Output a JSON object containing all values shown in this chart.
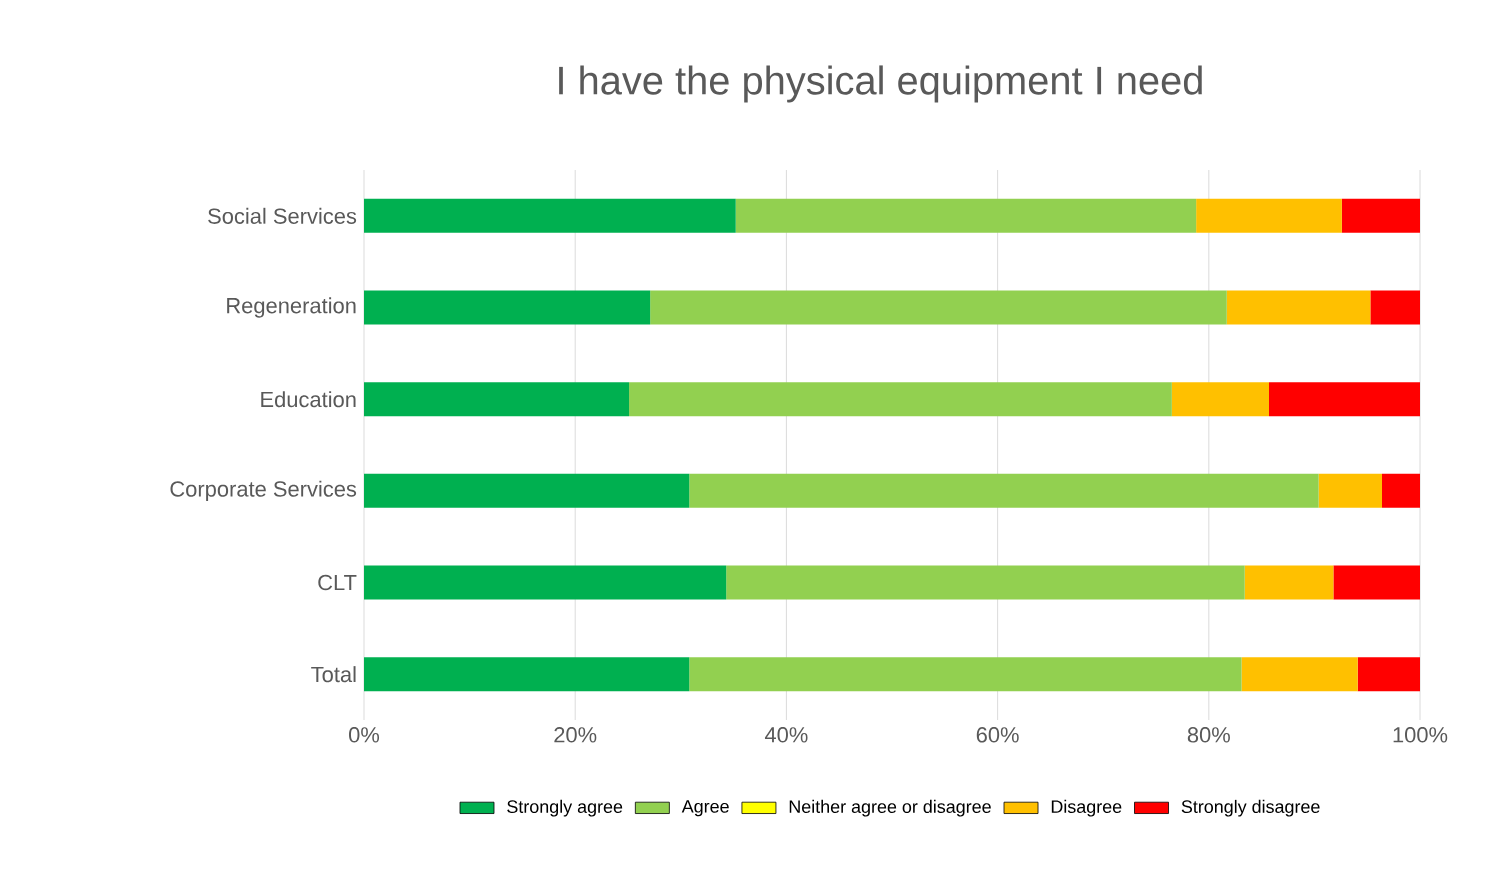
{
  "chart_data": {
    "type": "bar",
    "orientation": "horizontal",
    "stacked": true,
    "title": "I have the physical equipment I need",
    "categories": [
      "Social Services",
      "Regeneration",
      "Education",
      "Corporate Services",
      "CLT",
      "Total"
    ],
    "series": [
      {
        "name": "Strongly agree",
        "color": "#00b050",
        "values": [
          35.2,
          27.1,
          25.1,
          30.8,
          34.3,
          30.8
        ]
      },
      {
        "name": "Agree",
        "color": "#92d050",
        "values": [
          43.6,
          54.6,
          51.4,
          59.6,
          49.1,
          52.3
        ]
      },
      {
        "name": "Neither agree or disagree",
        "color": "#ffff00",
        "values": [
          0,
          0,
          0,
          0,
          0,
          0
        ]
      },
      {
        "name": "Disagree",
        "color": "#ffc000",
        "values": [
          13.8,
          13.6,
          9.2,
          6.0,
          8.4,
          11.0
        ]
      },
      {
        "name": "Strongly disagree",
        "color": "#ff0000",
        "values": [
          7.4,
          4.7,
          14.3,
          3.6,
          8.2,
          5.9
        ]
      }
    ],
    "xlim": [
      0,
      100
    ],
    "xticks": [
      {
        "value": 0,
        "label": "0%"
      },
      {
        "value": 20,
        "label": "20%"
      },
      {
        "value": 40,
        "label": "40%"
      },
      {
        "value": 60,
        "label": "60%"
      },
      {
        "value": 80,
        "label": "80%"
      },
      {
        "value": 100,
        "label": "100%"
      }
    ],
    "grid": "x",
    "legend": "bottom"
  }
}
